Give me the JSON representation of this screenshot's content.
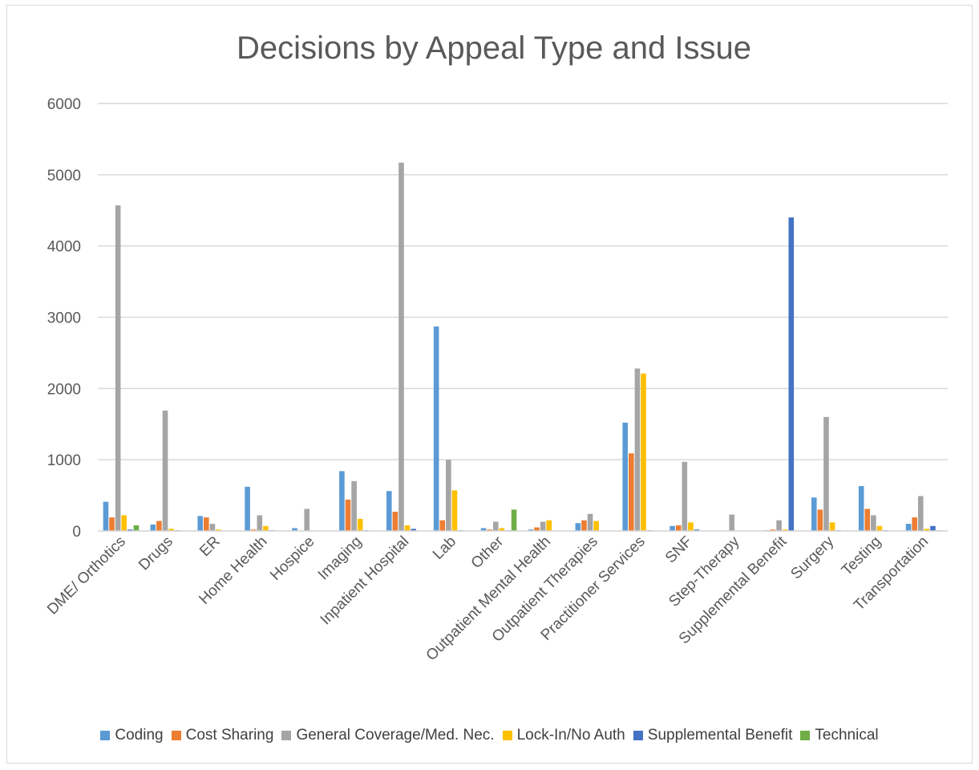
{
  "chart_data": {
    "type": "bar",
    "title": "Decisions by Appeal Type and Issue",
    "xlabel": "",
    "ylabel": "",
    "ylim": [
      0,
      6000
    ],
    "yticks": [
      0,
      1000,
      2000,
      3000,
      4000,
      5000,
      6000
    ],
    "grid": true,
    "legend_position": "bottom",
    "categories": [
      "DME/ Orthotics",
      "Drugs",
      "ER",
      "Home Health",
      "Hospice",
      "Imaging",
      "Inpatient Hospital",
      "Lab",
      "Other",
      "Outpatient Mental Health",
      "Outpatient Therapies",
      "Practitioner Services",
      "SNF",
      "Step-Therapy",
      "Supplemental Benefit",
      "Surgery",
      "Testing",
      "Transportation"
    ],
    "series": [
      {
        "name": "Coding",
        "color": "#5b9bd5",
        "values": [
          410,
          90,
          210,
          620,
          40,
          840,
          560,
          2870,
          40,
          20,
          110,
          1520,
          70,
          0,
          10,
          470,
          630,
          100
        ]
      },
      {
        "name": "Cost Sharing",
        "color": "#ed7d31",
        "values": [
          190,
          140,
          190,
          20,
          0,
          440,
          270,
          150,
          20,
          50,
          150,
          1090,
          80,
          0,
          20,
          300,
          310,
          190
        ]
      },
      {
        "name": "General Coverage/Med. Nec.",
        "color": "#a5a5a5",
        "values": [
          4570,
          1690,
          100,
          220,
          310,
          700,
          5170,
          1000,
          130,
          130,
          240,
          2280,
          970,
          230,
          150,
          1600,
          220,
          490
        ]
      },
      {
        "name": "Lock-In/No Auth",
        "color": "#ffc000",
        "values": [
          220,
          30,
          20,
          70,
          0,
          170,
          80,
          570,
          40,
          150,
          140,
          2210,
          120,
          0,
          20,
          120,
          70,
          30
        ]
      },
      {
        "name": "Supplemental Benefit",
        "color": "#4472c4",
        "values": [
          20,
          10,
          0,
          10,
          0,
          10,
          30,
          10,
          10,
          0,
          0,
          10,
          20,
          0,
          4400,
          10,
          10,
          70
        ]
      },
      {
        "name": "Technical",
        "color": "#70ad47",
        "values": [
          80,
          0,
          0,
          0,
          0,
          0,
          0,
          0,
          300,
          0,
          0,
          0,
          0,
          0,
          0,
          0,
          0,
          10
        ]
      }
    ]
  }
}
